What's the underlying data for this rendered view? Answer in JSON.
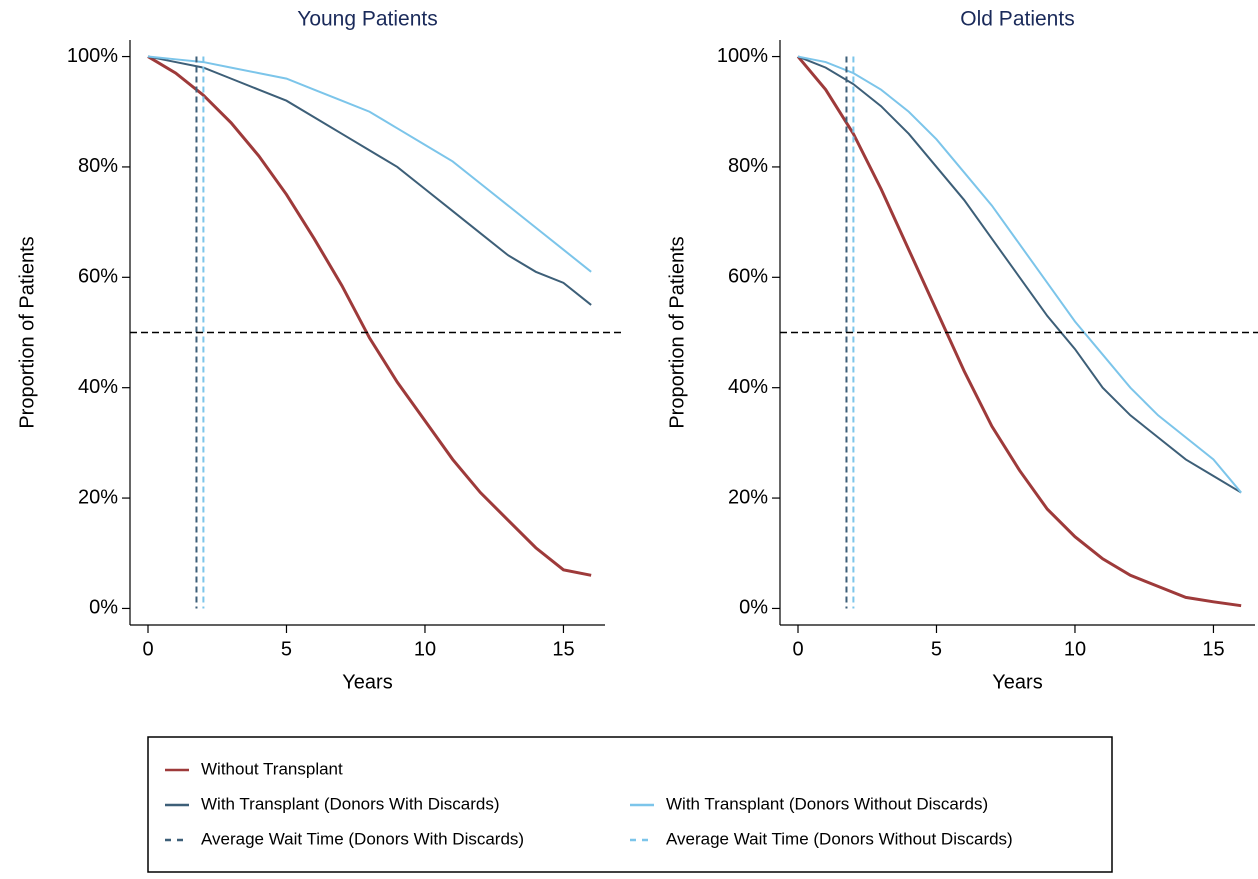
{
  "chart_data": [
    {
      "type": "line",
      "title": "Young Patients",
      "x_label": "Years",
      "y_label": "Proportion of Patients",
      "x": [
        0,
        1,
        2,
        3,
        4,
        5,
        6,
        7,
        8,
        9,
        10,
        11,
        12,
        13,
        14,
        15,
        16
      ],
      "xlim": [
        -0.65,
        16.5
      ],
      "ylim": [
        -3,
        103
      ],
      "xticks": [
        0,
        5,
        10,
        15
      ],
      "yticks": [
        {
          "value": 0,
          "label": "0%"
        },
        {
          "value": 20,
          "label": "20%"
        },
        {
          "value": 40,
          "label": "40%"
        },
        {
          "value": 60,
          "label": "60%"
        },
        {
          "value": 80,
          "label": "80%"
        },
        {
          "value": 100,
          "label": "100%"
        }
      ],
      "series": [
        {
          "name": "Without Transplant",
          "color": "#9e3a3a",
          "values": [
            100,
            97,
            93,
            88,
            82,
            75,
            67,
            58.5,
            49,
            41,
            34,
            27,
            21,
            16,
            11,
            7,
            6
          ]
        },
        {
          "name": "With Transplant (Donors With Discards)",
          "color": "#3d5f78",
          "values": [
            100,
            99,
            98,
            96,
            94,
            92,
            89,
            86,
            83,
            80,
            76,
            72,
            68,
            64,
            61,
            59,
            55
          ]
        },
        {
          "name": "With Transplant (Donors Without Discards)",
          "color": "#7cc5ea",
          "values": [
            100,
            99.5,
            99,
            98,
            97,
            96,
            94,
            92,
            90,
            87,
            84,
            81,
            77,
            73,
            69,
            65,
            61
          ]
        }
      ],
      "wait_times": [
        {
          "name": "Average Wait Time (Donors With Discards)",
          "color": "#3d5f78",
          "x": 1.75
        },
        {
          "name": "Average Wait Time (Donors Without Discards)",
          "color": "#7cc5ea",
          "x": 2.0
        }
      ],
      "reference_line": 50
    },
    {
      "type": "line",
      "title": "Old Patients",
      "x_label": "Years",
      "y_label": "Proportion of Patients",
      "x": [
        0,
        1,
        2,
        3,
        4,
        5,
        6,
        7,
        8,
        9,
        10,
        11,
        12,
        13,
        14,
        15,
        16
      ],
      "xlim": [
        -0.65,
        16.5
      ],
      "ylim": [
        -3,
        103
      ],
      "xticks": [
        0,
        5,
        10,
        15
      ],
      "yticks": [
        {
          "value": 0,
          "label": "0%"
        },
        {
          "value": 20,
          "label": "20%"
        },
        {
          "value": 40,
          "label": "40%"
        },
        {
          "value": 60,
          "label": "60%"
        },
        {
          "value": 80,
          "label": "80%"
        },
        {
          "value": 100,
          "label": "100%"
        }
      ],
      "series": [
        {
          "name": "Without Transplant",
          "color": "#9e3a3a",
          "values": [
            100,
            94,
            86,
            76,
            65,
            54,
            43,
            33,
            25,
            18,
            13,
            9,
            6,
            4,
            2,
            1.2,
            0.5
          ]
        },
        {
          "name": "With Transplant (Donors With Discards)",
          "color": "#3d5f78",
          "values": [
            100,
            98,
            95,
            91,
            86,
            80,
            74,
            67,
            60,
            53,
            47,
            40,
            35,
            31,
            27,
            24,
            21
          ]
        },
        {
          "name": "With Transplant (Donors Without Discards)",
          "color": "#7cc5ea",
          "values": [
            100,
            99,
            97,
            94,
            90,
            85,
            79,
            73,
            66,
            59,
            52,
            46,
            40,
            35,
            31,
            27,
            21
          ]
        }
      ],
      "wait_times": [
        {
          "name": "Average Wait Time (Donors With Discards)",
          "color": "#3d5f78",
          "x": 1.75
        },
        {
          "name": "Average Wait Time (Donors Without Discards)",
          "color": "#7cc5ea",
          "x": 2.0
        }
      ],
      "reference_line": 50
    }
  ]
}
